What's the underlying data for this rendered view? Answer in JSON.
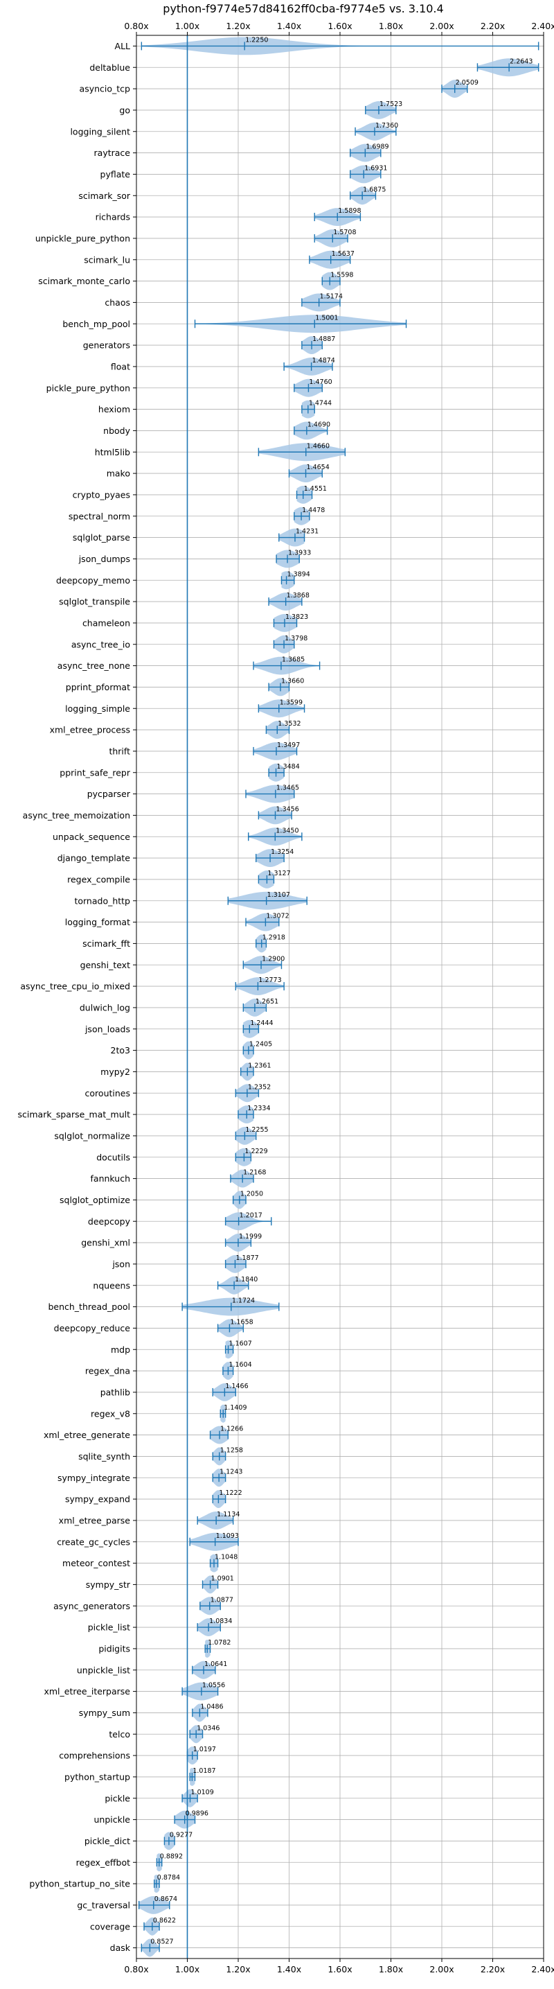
{
  "chart_data": {
    "type": "violin",
    "title": "python-f9774e57d84162ff0cba-f9774e5 vs. 3.10.4",
    "xlabel": "",
    "ylabel": "",
    "xlim": [
      0.8,
      2.4
    ],
    "xticks": [
      "0.80x",
      "1.00x",
      "1.20x",
      "1.40x",
      "1.60x",
      "1.80x",
      "2.00x",
      "2.20x",
      "2.40x"
    ],
    "xtick_values": [
      0.8,
      1.0,
      1.2,
      1.4,
      1.6,
      1.8,
      2.0,
      2.2,
      2.4
    ],
    "reference_line": 1.0,
    "grid": true,
    "colors": {
      "violin": "#a8c8e6",
      "bar": "#1f77b4",
      "grid": "#b0b0b0",
      "refline": "#1f77b4"
    },
    "benchmarks": [
      {
        "name": "ALL",
        "value": 1.225,
        "min": 0.82,
        "max": 2.38,
        "spread": 0.18
      },
      {
        "name": "deltablue",
        "value": 2.2643,
        "min": 2.14,
        "max": 2.38,
        "spread": 0.07
      },
      {
        "name": "asyncio_tcp",
        "value": 2.0509,
        "min": 2.0,
        "max": 2.1,
        "spread": 0.03
      },
      {
        "name": "go",
        "value": 1.7523,
        "min": 1.7,
        "max": 1.82,
        "spread": 0.04
      },
      {
        "name": "logging_silent",
        "value": 1.736,
        "min": 1.66,
        "max": 1.82,
        "spread": 0.04
      },
      {
        "name": "raytrace",
        "value": 1.6989,
        "min": 1.64,
        "max": 1.76,
        "spread": 0.04
      },
      {
        "name": "pyflate",
        "value": 1.6931,
        "min": 1.64,
        "max": 1.76,
        "spread": 0.04
      },
      {
        "name": "scimark_sor",
        "value": 1.6875,
        "min": 1.64,
        "max": 1.74,
        "spread": 0.03
      },
      {
        "name": "richards",
        "value": 1.5898,
        "min": 1.5,
        "max": 1.68,
        "spread": 0.05
      },
      {
        "name": "unpickle_pure_python",
        "value": 1.5708,
        "min": 1.5,
        "max": 1.63,
        "spread": 0.04
      },
      {
        "name": "scimark_lu",
        "value": 1.5637,
        "min": 1.48,
        "max": 1.64,
        "spread": 0.05
      },
      {
        "name": "scimark_monte_carlo",
        "value": 1.5598,
        "min": 1.53,
        "max": 1.6,
        "spread": 0.03
      },
      {
        "name": "chaos",
        "value": 1.5174,
        "min": 1.45,
        "max": 1.6,
        "spread": 0.05
      },
      {
        "name": "bench_mp_pool",
        "value": 1.5001,
        "min": 1.03,
        "max": 1.86,
        "spread": 0.18
      },
      {
        "name": "generators",
        "value": 1.4887,
        "min": 1.45,
        "max": 1.53,
        "spread": 0.03
      },
      {
        "name": "float",
        "value": 1.4874,
        "min": 1.38,
        "max": 1.57,
        "spread": 0.05
      },
      {
        "name": "pickle_pure_python",
        "value": 1.476,
        "min": 1.42,
        "max": 1.53,
        "spread": 0.04
      },
      {
        "name": "hexiom",
        "value": 1.4744,
        "min": 1.45,
        "max": 1.5,
        "spread": 0.03
      },
      {
        "name": "nbody",
        "value": 1.469,
        "min": 1.42,
        "max": 1.55,
        "spread": 0.04
      },
      {
        "name": "html5lib",
        "value": 1.466,
        "min": 1.28,
        "max": 1.62,
        "spread": 0.1
      },
      {
        "name": "mako",
        "value": 1.4654,
        "min": 1.4,
        "max": 1.53,
        "spread": 0.04
      },
      {
        "name": "crypto_pyaes",
        "value": 1.4551,
        "min": 1.43,
        "max": 1.49,
        "spread": 0.03
      },
      {
        "name": "spectral_norm",
        "value": 1.4478,
        "min": 1.42,
        "max": 1.48,
        "spread": 0.03
      },
      {
        "name": "sqlglot_parse",
        "value": 1.4231,
        "min": 1.36,
        "max": 1.46,
        "spread": 0.04
      },
      {
        "name": "json_dumps",
        "value": 1.3933,
        "min": 1.35,
        "max": 1.44,
        "spread": 0.04
      },
      {
        "name": "deepcopy_memo",
        "value": 1.3894,
        "min": 1.37,
        "max": 1.42,
        "spread": 0.03
      },
      {
        "name": "sqlglot_transpile",
        "value": 1.3868,
        "min": 1.32,
        "max": 1.45,
        "spread": 0.04
      },
      {
        "name": "chameleon",
        "value": 1.3823,
        "min": 1.34,
        "max": 1.43,
        "spread": 0.04
      },
      {
        "name": "async_tree_io",
        "value": 1.3798,
        "min": 1.34,
        "max": 1.42,
        "spread": 0.03
      },
      {
        "name": "async_tree_none",
        "value": 1.3685,
        "min": 1.26,
        "max": 1.52,
        "spread": 0.06
      },
      {
        "name": "pprint_pformat",
        "value": 1.366,
        "min": 1.32,
        "max": 1.4,
        "spread": 0.03
      },
      {
        "name": "logging_simple",
        "value": 1.3599,
        "min": 1.28,
        "max": 1.46,
        "spread": 0.05
      },
      {
        "name": "xml_etree_process",
        "value": 1.3532,
        "min": 1.31,
        "max": 1.4,
        "spread": 0.03
      },
      {
        "name": "thrift",
        "value": 1.3497,
        "min": 1.26,
        "max": 1.43,
        "spread": 0.05
      },
      {
        "name": "pprint_safe_repr",
        "value": 1.3484,
        "min": 1.32,
        "max": 1.38,
        "spread": 0.03
      },
      {
        "name": "pycparser",
        "value": 1.3465,
        "min": 1.23,
        "max": 1.42,
        "spread": 0.06
      },
      {
        "name": "async_tree_memoization",
        "value": 1.3456,
        "min": 1.28,
        "max": 1.41,
        "spread": 0.04
      },
      {
        "name": "unpack_sequence",
        "value": 1.345,
        "min": 1.24,
        "max": 1.45,
        "spread": 0.05
      },
      {
        "name": "django_template",
        "value": 1.3254,
        "min": 1.27,
        "max": 1.38,
        "spread": 0.04
      },
      {
        "name": "regex_compile",
        "value": 1.3127,
        "min": 1.28,
        "max": 1.34,
        "spread": 0.03
      },
      {
        "name": "tornado_http",
        "value": 1.3107,
        "min": 1.16,
        "max": 1.47,
        "spread": 0.09
      },
      {
        "name": "logging_format",
        "value": 1.3072,
        "min": 1.23,
        "max": 1.36,
        "spread": 0.04
      },
      {
        "name": "scimark_fft",
        "value": 1.2918,
        "min": 1.27,
        "max": 1.31,
        "spread": 0.02
      },
      {
        "name": "genshi_text",
        "value": 1.29,
        "min": 1.22,
        "max": 1.37,
        "spread": 0.04
      },
      {
        "name": "async_tree_cpu_io_mixed",
        "value": 1.2773,
        "min": 1.19,
        "max": 1.38,
        "spread": 0.05
      },
      {
        "name": "dulwich_log",
        "value": 1.2651,
        "min": 1.22,
        "max": 1.31,
        "spread": 0.03
      },
      {
        "name": "json_loads",
        "value": 1.2444,
        "min": 1.22,
        "max": 1.28,
        "spread": 0.03
      },
      {
        "name": "2to3",
        "value": 1.2405,
        "min": 1.22,
        "max": 1.26,
        "spread": 0.02
      },
      {
        "name": "mypy2",
        "value": 1.2361,
        "min": 1.21,
        "max": 1.26,
        "spread": 0.02
      },
      {
        "name": "coroutines",
        "value": 1.2352,
        "min": 1.19,
        "max": 1.28,
        "spread": 0.03
      },
      {
        "name": "scimark_sparse_mat_mult",
        "value": 1.2334,
        "min": 1.2,
        "max": 1.26,
        "spread": 0.03
      },
      {
        "name": "sqlglot_normalize",
        "value": 1.2255,
        "min": 1.19,
        "max": 1.27,
        "spread": 0.03
      },
      {
        "name": "docutils",
        "value": 1.2229,
        "min": 1.19,
        "max": 1.25,
        "spread": 0.03
      },
      {
        "name": "fannkuch",
        "value": 1.2168,
        "min": 1.17,
        "max": 1.26,
        "spread": 0.03
      },
      {
        "name": "sqlglot_optimize",
        "value": 1.205,
        "min": 1.18,
        "max": 1.23,
        "spread": 0.02
      },
      {
        "name": "deepcopy",
        "value": 1.2017,
        "min": 1.15,
        "max": 1.33,
        "spread": 0.04
      },
      {
        "name": "genshi_xml",
        "value": 1.1999,
        "min": 1.15,
        "max": 1.25,
        "spread": 0.03
      },
      {
        "name": "json",
        "value": 1.1877,
        "min": 1.15,
        "max": 1.23,
        "spread": 0.03
      },
      {
        "name": "nqueens",
        "value": 1.184,
        "min": 1.12,
        "max": 1.24,
        "spread": 0.03
      },
      {
        "name": "bench_thread_pool",
        "value": 1.1724,
        "min": 0.98,
        "max": 1.36,
        "spread": 0.11
      },
      {
        "name": "deepcopy_reduce",
        "value": 1.1658,
        "min": 1.12,
        "max": 1.22,
        "spread": 0.03
      },
      {
        "name": "mdp",
        "value": 1.1607,
        "min": 1.15,
        "max": 1.18,
        "spread": 0.02
      },
      {
        "name": "regex_dna",
        "value": 1.1604,
        "min": 1.14,
        "max": 1.18,
        "spread": 0.02
      },
      {
        "name": "pathlib",
        "value": 1.1466,
        "min": 1.1,
        "max": 1.19,
        "spread": 0.03
      },
      {
        "name": "regex_v8",
        "value": 1.1409,
        "min": 1.13,
        "max": 1.15,
        "spread": 0.015
      },
      {
        "name": "xml_etree_generate",
        "value": 1.1266,
        "min": 1.09,
        "max": 1.16,
        "spread": 0.03
      },
      {
        "name": "sqlite_synth",
        "value": 1.1258,
        "min": 1.1,
        "max": 1.15,
        "spread": 0.02
      },
      {
        "name": "sympy_integrate",
        "value": 1.1243,
        "min": 1.1,
        "max": 1.15,
        "spread": 0.02
      },
      {
        "name": "sympy_expand",
        "value": 1.1222,
        "min": 1.1,
        "max": 1.15,
        "spread": 0.02
      },
      {
        "name": "xml_etree_parse",
        "value": 1.1134,
        "min": 1.04,
        "max": 1.18,
        "spread": 0.04
      },
      {
        "name": "create_gc_cycles",
        "value": 1.1093,
        "min": 1.01,
        "max": 1.2,
        "spread": 0.06
      },
      {
        "name": "meteor_contest",
        "value": 1.1048,
        "min": 1.09,
        "max": 1.12,
        "spread": 0.02
      },
      {
        "name": "sympy_str",
        "value": 1.0901,
        "min": 1.06,
        "max": 1.12,
        "spread": 0.02
      },
      {
        "name": "async_generators",
        "value": 1.0877,
        "min": 1.05,
        "max": 1.13,
        "spread": 0.03
      },
      {
        "name": "pickle_list",
        "value": 1.0834,
        "min": 1.04,
        "max": 1.13,
        "spread": 0.03
      },
      {
        "name": "pidigits",
        "value": 1.0782,
        "min": 1.07,
        "max": 1.09,
        "spread": 0.015
      },
      {
        "name": "unpickle_list",
        "value": 1.0641,
        "min": 1.02,
        "max": 1.11,
        "spread": 0.03
      },
      {
        "name": "xml_etree_iterparse",
        "value": 1.0556,
        "min": 0.98,
        "max": 1.12,
        "spread": 0.05
      },
      {
        "name": "sympy_sum",
        "value": 1.0486,
        "min": 1.02,
        "max": 1.08,
        "spread": 0.02
      },
      {
        "name": "telco",
        "value": 1.0346,
        "min": 1.01,
        "max": 1.06,
        "spread": 0.02
      },
      {
        "name": "comprehensions",
        "value": 1.0197,
        "min": 1.0,
        "max": 1.04,
        "spread": 0.02
      },
      {
        "name": "python_startup",
        "value": 1.0187,
        "min": 1.01,
        "max": 1.03,
        "spread": 0.015
      },
      {
        "name": "pickle",
        "value": 1.0109,
        "min": 0.98,
        "max": 1.04,
        "spread": 0.02
      },
      {
        "name": "unpickle",
        "value": 0.9896,
        "min": 0.95,
        "max": 1.03,
        "spread": 0.03
      },
      {
        "name": "pickle_dict",
        "value": 0.9277,
        "min": 0.91,
        "max": 0.95,
        "spread": 0.02
      },
      {
        "name": "regex_effbot",
        "value": 0.8892,
        "min": 0.88,
        "max": 0.9,
        "spread": 0.015
      },
      {
        "name": "python_startup_no_site",
        "value": 0.8784,
        "min": 0.87,
        "max": 0.89,
        "spread": 0.015
      },
      {
        "name": "gc_traversal",
        "value": 0.8674,
        "min": 0.81,
        "max": 0.93,
        "spread": 0.04
      },
      {
        "name": "coverage",
        "value": 0.8622,
        "min": 0.83,
        "max": 0.89,
        "spread": 0.02
      },
      {
        "name": "dask",
        "value": 0.8527,
        "min": 0.82,
        "max": 0.89,
        "spread": 0.02
      }
    ]
  }
}
